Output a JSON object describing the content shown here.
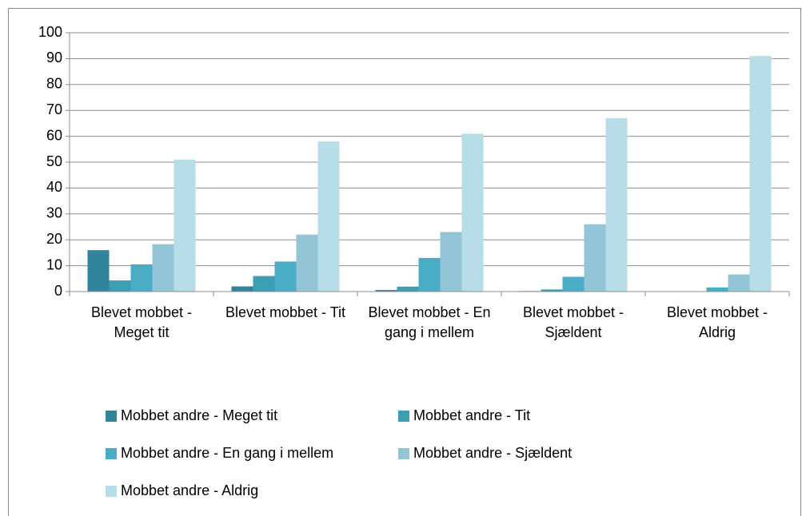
{
  "chart_data": {
    "type": "bar",
    "categories": [
      "Blevet mobbet - Meget tit",
      "Blevet mobbet - Tit",
      "Blevet mobbet - En gang i mellem",
      "Blevet mobbet - Sjældent",
      "Blevet mobbet - Aldrig"
    ],
    "series": [
      {
        "name": "Mobbet andre - Meget tit",
        "color": "#31849b",
        "values": [
          16,
          2,
          0.6,
          0.2,
          0
        ]
      },
      {
        "name": "Mobbet andre - Tit",
        "color": "#3d9db3",
        "values": [
          4.3,
          6,
          1.9,
          0.8,
          0
        ]
      },
      {
        "name": "Mobbet andre - En gang i mellem",
        "color": "#4bacc6",
        "values": [
          10.5,
          11.6,
          13,
          5.7,
          1.6
        ]
      },
      {
        "name": "Mobbet andre - Sjældent",
        "color": "#93c5d6",
        "values": [
          18.3,
          22,
          23,
          26,
          6.6
        ]
      },
      {
        "name": "Mobbet andre - Aldrig",
        "color": "#b7dde8",
        "values": [
          51,
          58,
          61,
          67,
          91
        ]
      }
    ],
    "ylim": [
      0,
      100
    ],
    "yticks": [
      0,
      10,
      20,
      30,
      40,
      50,
      60,
      70,
      80,
      90,
      100
    ],
    "grid": true,
    "legend": "bottom"
  }
}
